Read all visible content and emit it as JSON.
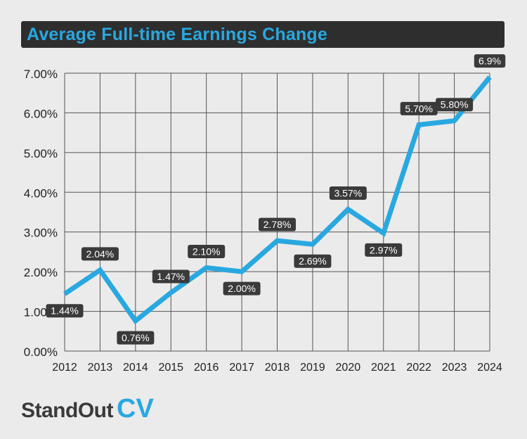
{
  "header": {
    "title": "Average Full-time Earnings Change"
  },
  "brand": {
    "name": "StandOut",
    "accent": "CV"
  },
  "colors": {
    "line": "#29a8e0",
    "title_bar": "#2e2e2e",
    "title_text": "#29a8e0",
    "label_bg": "#3a3a3a",
    "label_text": "#ffffff",
    "grid": "#555555",
    "background": "#ebebeb"
  },
  "chart_data": {
    "type": "line",
    "title": "Average Full-time Earnings Change",
    "xlabel": "",
    "ylabel": "",
    "x": [
      "2012",
      "2013",
      "2014",
      "2015",
      "2016",
      "2017",
      "2018",
      "2019",
      "2020",
      "2021",
      "2022",
      "2023",
      "2024"
    ],
    "series": [
      {
        "values": [
          1.44,
          2.04,
          0.76,
          1.47,
          2.1,
          2.0,
          2.78,
          2.69,
          3.57,
          2.97,
          5.7,
          5.8,
          6.9
        ]
      }
    ],
    "data_labels": [
      "1.44%",
      "2.04%",
      "0.76%",
      "1.47%",
      "2.10%",
      "2.00%",
      "2.78%",
      "2.69%",
      "3.57%",
      "2.97%",
      "5.70%",
      "5.80%",
      "6.9%"
    ],
    "ylim": [
      0,
      7
    ],
    "y_ticks": [
      "0.00%",
      "1.00%",
      "2.00%",
      "3.00%",
      "4.00%",
      "5.00%",
      "6.00%",
      "7.00%"
    ],
    "grid": true,
    "legend": "none"
  }
}
